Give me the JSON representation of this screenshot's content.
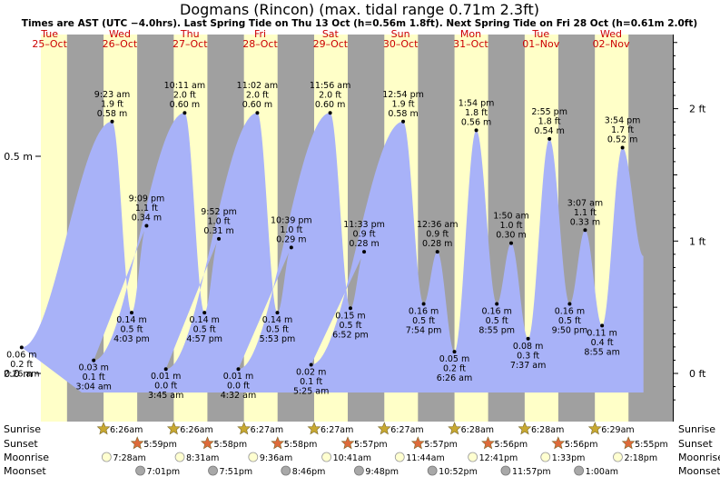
{
  "chart_data": {
    "type": "area",
    "title": "Dogmans (Rincon) (max. tidal range 0.71m 2.3ft)",
    "subtitle": "Times are AST (UTC −4.0hrs). Last Spring Tide on Thu 13 Oct (h=0.56m 1.8ft). Next Spring Tide on Fri 28 Oct (h=0.61m 2.0ft)",
    "days": [
      {
        "dow": "Tue",
        "date": "25–Oct"
      },
      {
        "dow": "Wed",
        "date": "26–Oct"
      },
      {
        "dow": "Thu",
        "date": "27–Oct"
      },
      {
        "dow": "Fri",
        "date": "28–Oct"
      },
      {
        "dow": "Sat",
        "date": "29–Oct"
      },
      {
        "dow": "Sun",
        "date": "30–Oct"
      },
      {
        "dow": "Mon",
        "date": "31–Oct"
      },
      {
        "dow": "Tue",
        "date": "01–Nov"
      },
      {
        "dow": "Wed",
        "date": "02–Nov"
      }
    ],
    "y_left_ticks": [
      {
        "v": 0.0,
        "label": "0.0 m"
      },
      {
        "v": 0.5,
        "label": "0.5 m"
      }
    ],
    "y_right_ticks": [
      {
        "ft": 0,
        "label": "0 ft"
      },
      {
        "ft": 1,
        "label": "1 ft"
      },
      {
        "ft": 2,
        "label": "2 ft"
      }
    ],
    "ylim": [
      -0.09,
      0.79
    ],
    "start_height": 0.36,
    "end_height": 0.27,
    "daylight_hours": [
      6.45,
      17.95
    ],
    "extremes": [
      {
        "day": 0,
        "time": "2:26 am",
        "hours": 2.43,
        "m": "0.06 m",
        "ft": "0.2 ft",
        "v": 0.06,
        "type": "low"
      },
      {
        "day": 1,
        "time": "9:23 am",
        "hours": 9.38,
        "m": "0.58 m",
        "ft": "1.9 ft",
        "v": 0.58,
        "type": "high"
      },
      {
        "day": 1,
        "time": "4:03 pm",
        "hours": 16.05,
        "m": "0.14 m",
        "ft": "0.5 ft",
        "v": 0.14,
        "type": "low"
      },
      {
        "day": 1,
        "time": "9:09 pm",
        "hours": 21.15,
        "m": "0.34 m",
        "ft": "1.1 ft",
        "v": 0.34,
        "type": "high"
      },
      {
        "day": 1,
        "time": "3:04 am",
        "hours": 3.07,
        "m": "0.03 m",
        "ft": "0.1 ft",
        "v": 0.03,
        "type": "low"
      },
      {
        "day": 2,
        "time": "10:11 am",
        "hours": 10.18,
        "m": "0.60 m",
        "ft": "2.0 ft",
        "v": 0.6,
        "type": "high"
      },
      {
        "day": 2,
        "time": "4:57 pm",
        "hours": 16.95,
        "m": "0.14 m",
        "ft": "0.5 ft",
        "v": 0.14,
        "type": "low"
      },
      {
        "day": 2,
        "time": "9:52 pm",
        "hours": 21.87,
        "m": "0.31 m",
        "ft": "1.0 ft",
        "v": 0.31,
        "type": "high"
      },
      {
        "day": 2,
        "time": "3:45 am",
        "hours": 3.75,
        "m": "0.01 m",
        "ft": "0.0 ft",
        "v": 0.01,
        "type": "low"
      },
      {
        "day": 3,
        "time": "11:02 am",
        "hours": 11.03,
        "m": "0.60 m",
        "ft": "2.0 ft",
        "v": 0.6,
        "type": "high"
      },
      {
        "day": 3,
        "time": "5:53 pm",
        "hours": 17.88,
        "m": "0.14 m",
        "ft": "0.5 ft",
        "v": 0.14,
        "type": "low"
      },
      {
        "day": 3,
        "time": "10:39 pm",
        "hours": 22.65,
        "m": "0.29 m",
        "ft": "1.0 ft",
        "v": 0.29,
        "type": "high"
      },
      {
        "day": 3,
        "time": "4:32 am",
        "hours": 4.53,
        "m": "0.01 m",
        "ft": "0.0 ft",
        "v": 0.01,
        "type": "low"
      },
      {
        "day": 4,
        "time": "11:56 am",
        "hours": 11.93,
        "m": "0.60 m",
        "ft": "2.0 ft",
        "v": 0.6,
        "type": "high"
      },
      {
        "day": 4,
        "time": "6:52 pm",
        "hours": 18.87,
        "m": "0.15 m",
        "ft": "0.5 ft",
        "v": 0.15,
        "type": "low"
      },
      {
        "day": 4,
        "time": "11:33 pm",
        "hours": 23.55,
        "m": "0.28 m",
        "ft": "0.9 ft",
        "v": 0.28,
        "type": "high"
      },
      {
        "day": 4,
        "time": "5:25 am",
        "hours": 5.42,
        "m": "0.02 m",
        "ft": "0.1 ft",
        "v": 0.02,
        "type": "low"
      },
      {
        "day": 5,
        "time": "12:54 pm",
        "hours": 12.9,
        "m": "0.58 m",
        "ft": "1.9 ft",
        "v": 0.58,
        "type": "high"
      },
      {
        "day": 5,
        "time": "7:54 pm",
        "hours": 19.9,
        "m": "0.16 m",
        "ft": "0.5 ft",
        "v": 0.16,
        "type": "low"
      },
      {
        "day": 6,
        "time": "12:36 am",
        "hours": 0.6,
        "m": "0.28 m",
        "ft": "0.9 ft",
        "v": 0.28,
        "type": "high"
      },
      {
        "day": 6,
        "time": "6:26 am",
        "hours": 6.43,
        "m": "0.05 m",
        "ft": "0.2 ft",
        "v": 0.05,
        "type": "low"
      },
      {
        "day": 6,
        "time": "1:54 pm",
        "hours": 13.9,
        "m": "0.56 m",
        "ft": "1.8 ft",
        "v": 0.56,
        "type": "high"
      },
      {
        "day": 6,
        "time": "8:55 pm",
        "hours": 20.92,
        "m": "0.16 m",
        "ft": "0.5 ft",
        "v": 0.16,
        "type": "low"
      },
      {
        "day": 7,
        "time": "1:50 am",
        "hours": 1.83,
        "m": "0.30 m",
        "ft": "1.0 ft",
        "v": 0.3,
        "type": "high"
      },
      {
        "day": 7,
        "time": "7:37 am",
        "hours": 7.62,
        "m": "0.08 m",
        "ft": "0.3 ft",
        "v": 0.08,
        "type": "low"
      },
      {
        "day": 7,
        "time": "2:55 pm",
        "hours": 14.92,
        "m": "0.54 m",
        "ft": "1.8 ft",
        "v": 0.54,
        "type": "high"
      },
      {
        "day": 7,
        "time": "9:50 pm",
        "hours": 21.83,
        "m": "0.16 m",
        "ft": "0.5 ft",
        "v": 0.16,
        "type": "low"
      },
      {
        "day": 8,
        "time": "3:07 am",
        "hours": 3.12,
        "m": "0.33 m",
        "ft": "1.1 ft",
        "v": 0.33,
        "type": "high"
      },
      {
        "day": 8,
        "time": "8:55 am",
        "hours": 8.92,
        "m": "0.11 m",
        "ft": "0.4 ft",
        "v": 0.11,
        "type": "low"
      },
      {
        "day": 8,
        "time": "3:54 pm",
        "hours": 15.9,
        "m": "0.52 m",
        "ft": "1.7 ft",
        "v": 0.52,
        "type": "high"
      }
    ],
    "rows": {
      "sunrise_label": "Sunrise",
      "sunset_label": "Sunset",
      "moonrise_label": "Moonrise",
      "moonset_label": "Moonset",
      "sunrise": [
        {
          "day": 1,
          "hours": 6.43,
          "time": "6:26am"
        },
        {
          "day": 2,
          "hours": 6.43,
          "time": "6:26am"
        },
        {
          "day": 3,
          "hours": 6.45,
          "time": "6:27am"
        },
        {
          "day": 4,
          "hours": 6.45,
          "time": "6:27am"
        },
        {
          "day": 5,
          "hours": 6.45,
          "time": "6:27am"
        },
        {
          "day": 6,
          "hours": 6.47,
          "time": "6:28am"
        },
        {
          "day": 7,
          "hours": 6.47,
          "time": "6:28am"
        },
        {
          "day": 8,
          "hours": 6.48,
          "time": "6:29am"
        }
      ],
      "sunset": [
        {
          "day": 1,
          "hours": 17.98,
          "time": "5:59pm"
        },
        {
          "day": 2,
          "hours": 17.97,
          "time": "5:58pm"
        },
        {
          "day": 3,
          "hours": 17.97,
          "time": "5:58pm"
        },
        {
          "day": 4,
          "hours": 17.95,
          "time": "5:57pm"
        },
        {
          "day": 5,
          "hours": 17.95,
          "time": "5:57pm"
        },
        {
          "day": 6,
          "hours": 17.93,
          "time": "5:56pm"
        },
        {
          "day": 7,
          "hours": 17.93,
          "time": "5:56pm"
        },
        {
          "day": 8,
          "hours": 17.92,
          "time": "5:55pm"
        }
      ],
      "moonrise": [
        {
          "day": 1,
          "hours": 7.47,
          "time": "7:28am"
        },
        {
          "day": 2,
          "hours": 8.52,
          "time": "8:31am"
        },
        {
          "day": 3,
          "hours": 9.6,
          "time": "9:36am"
        },
        {
          "day": 4,
          "hours": 10.68,
          "time": "10:41am"
        },
        {
          "day": 5,
          "hours": 11.73,
          "time": "11:44am"
        },
        {
          "day": 6,
          "hours": 12.68,
          "time": "12:41pm"
        },
        {
          "day": 7,
          "hours": 13.55,
          "time": "1:33pm"
        },
        {
          "day": 8,
          "hours": 14.3,
          "time": "2:18pm"
        }
      ],
      "moonset": [
        {
          "day": 1,
          "hours": 19.02,
          "time": "7:01pm"
        },
        {
          "day": 2,
          "hours": 19.85,
          "time": "7:51pm"
        },
        {
          "day": 3,
          "hours": 20.77,
          "time": "8:46pm"
        },
        {
          "day": 4,
          "hours": 21.8,
          "time": "9:48pm"
        },
        {
          "day": 5,
          "hours": 22.87,
          "time": "10:52pm"
        },
        {
          "day": 6,
          "hours": 23.95,
          "time": "11:57pm"
        },
        {
          "day": 8,
          "hours": 1.0,
          "time": "1:00am"
        }
      ]
    },
    "colors": {
      "night": "#a0a0a0",
      "day": "#ffffc8",
      "tide": "#a8b2f8",
      "day_label": "#cc0000",
      "text": "#000000",
      "sun": "#c8a830",
      "sunset": "#dd6a3a",
      "moonrise": "#ffffd0",
      "moonset": "#a8a8a8"
    }
  }
}
